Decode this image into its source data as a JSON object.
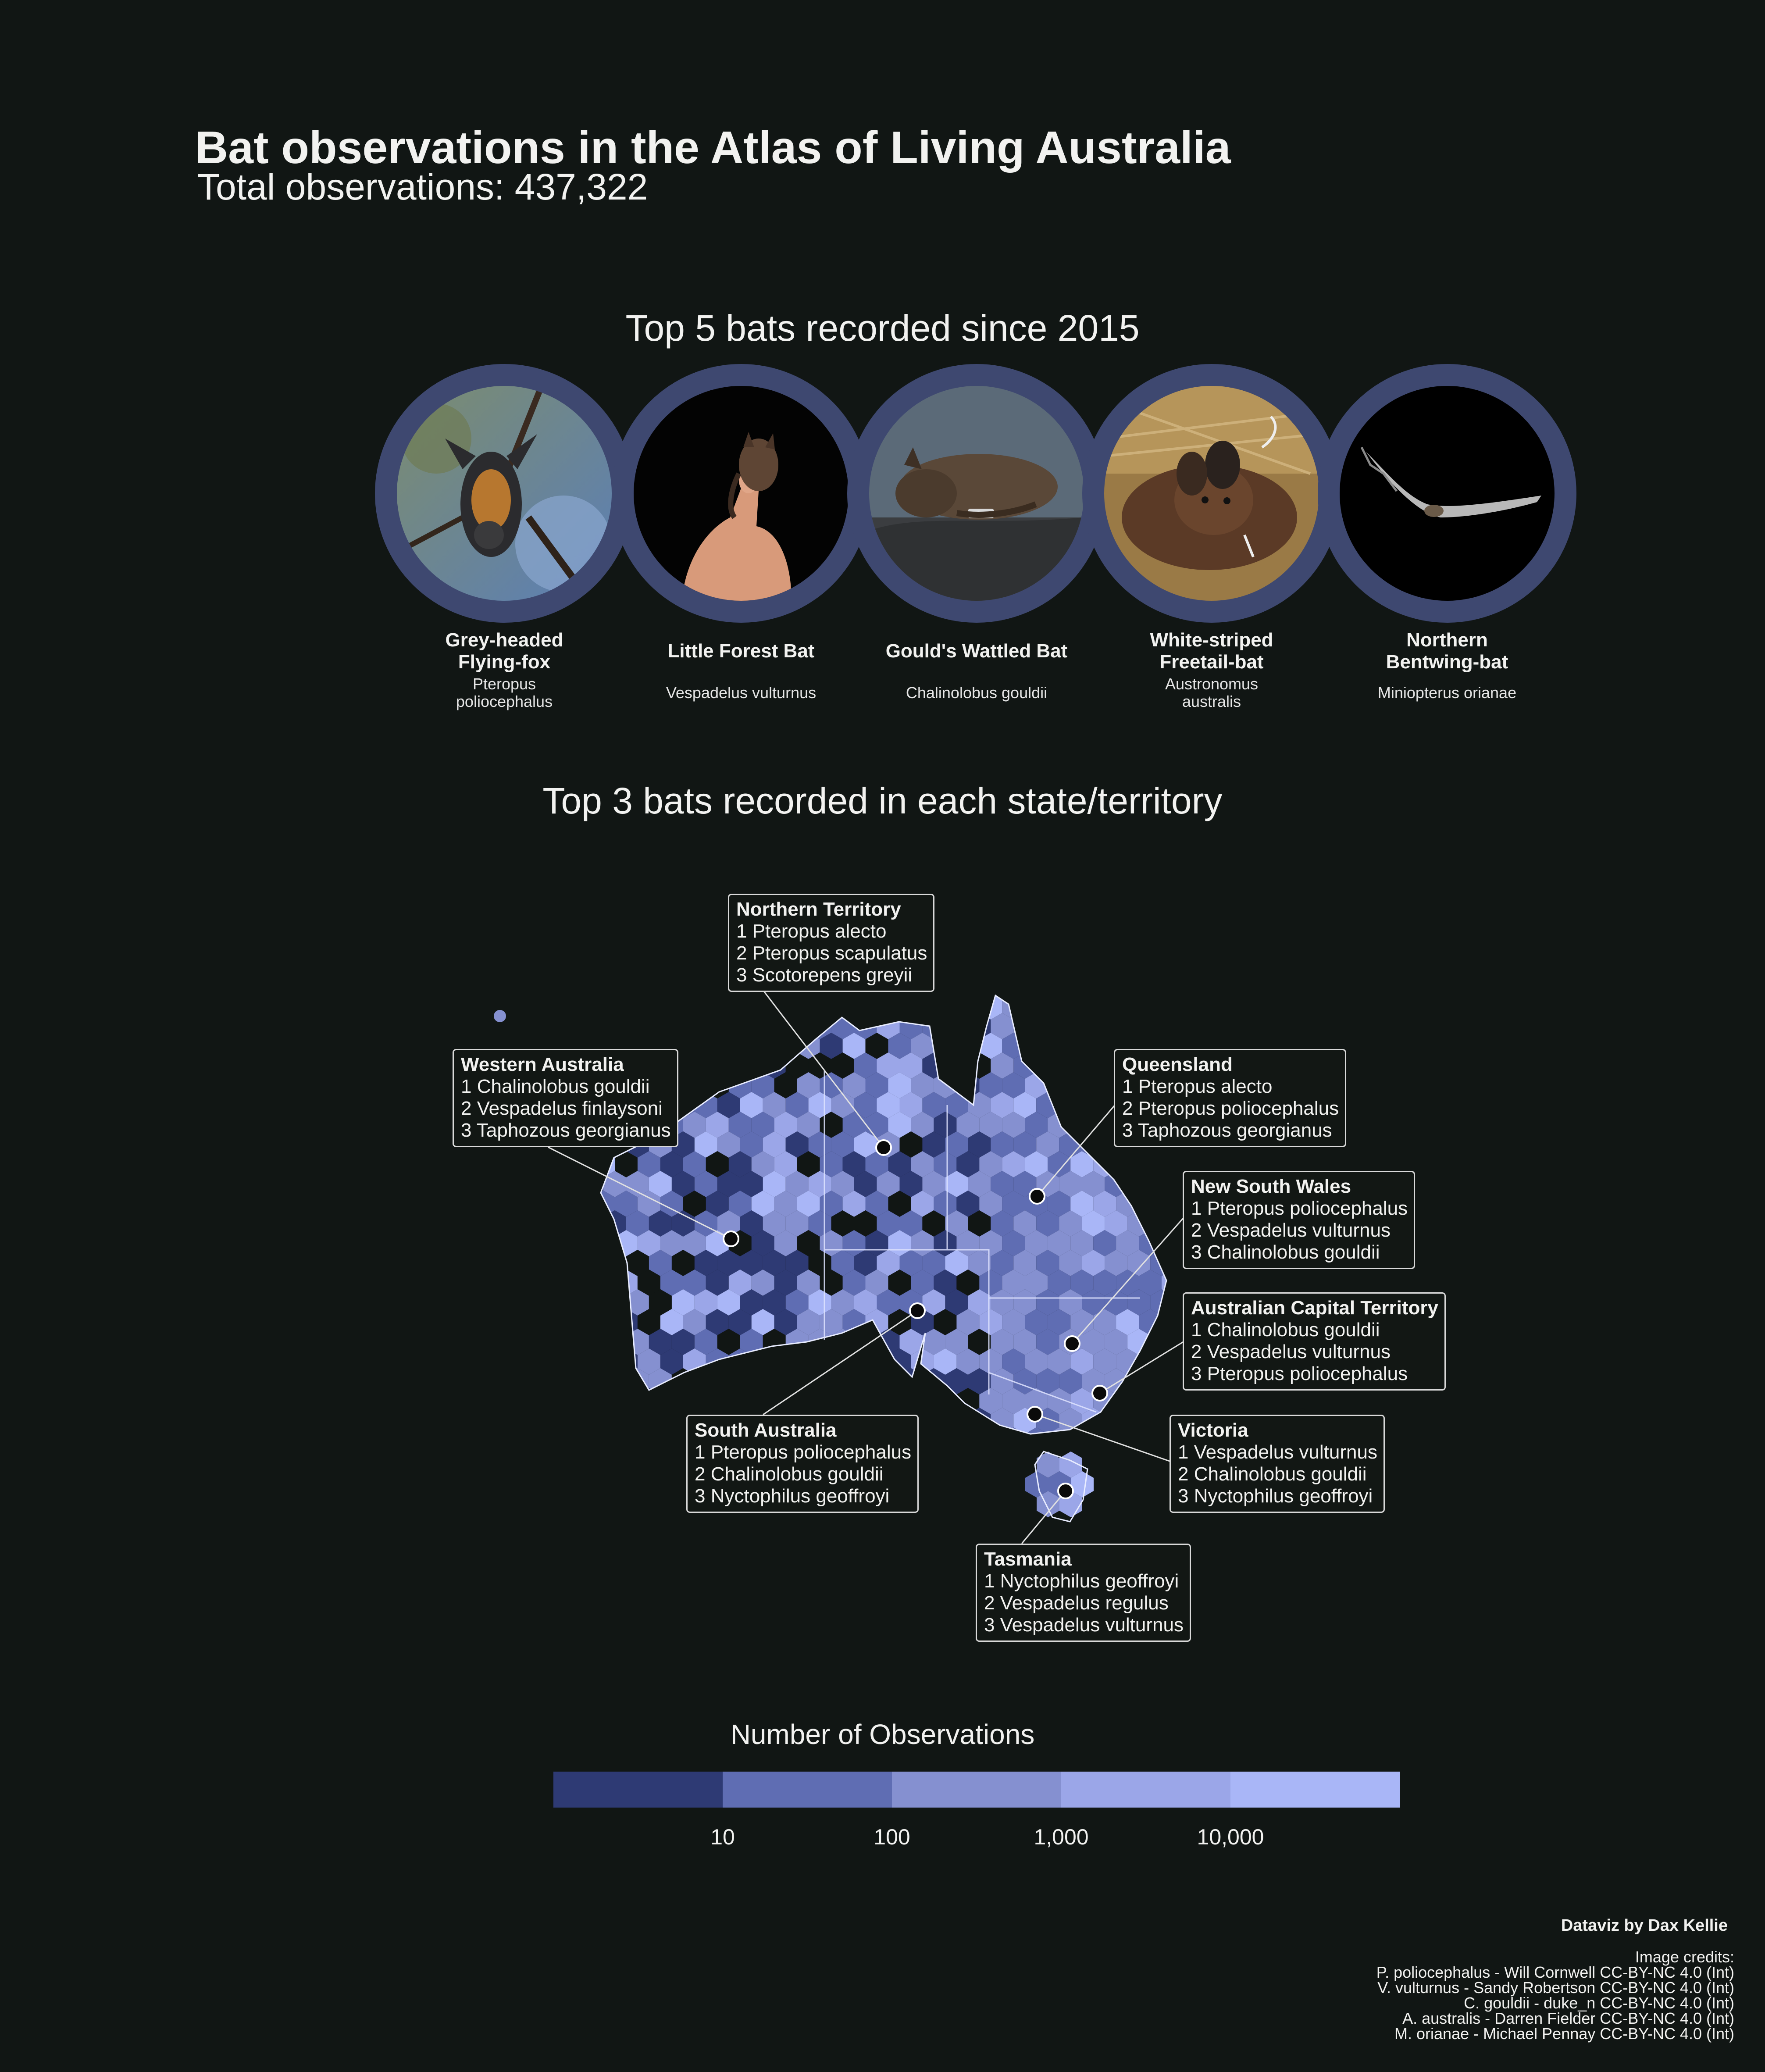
{
  "title": "Bat observations in the Atlas of Living Australia",
  "subtitle": "Total observations: 437,322",
  "top5_title": "Top 5 bats recorded since 2015",
  "bats": [
    {
      "common_name": "Grey-headed Flying-fox",
      "scientific_name": "Pteropus poliocephalus",
      "photo_icon": "grey-headed-flying-fox-photo"
    },
    {
      "common_name": "Little Forest Bat",
      "scientific_name": "Vespadelus vulturnus",
      "photo_icon": "little-forest-bat-photo"
    },
    {
      "common_name": "Gould's Wattled Bat",
      "scientific_name": "Chalinolobus gouldii",
      "photo_icon": "goulds-wattled-bat-photo"
    },
    {
      "common_name": "White-striped Freetail-bat",
      "scientific_name": "Austronomus australis",
      "photo_icon": "white-striped-freetail-bat-photo"
    },
    {
      "common_name": "Northern Bentwing-bat",
      "scientific_name": "Miniopterus orianae",
      "photo_icon": "northern-bentwing-bat-photo"
    }
  ],
  "map_title": "Top 3 bats recorded in each state/territory",
  "states": [
    {
      "name": "Northern Territory",
      "top3": [
        "1 Pteropus alecto",
        "2 Pteropus scapulatus",
        "3 Scotorepens greyii"
      ]
    },
    {
      "name": "Western Australia",
      "top3": [
        "1 Chalinolobus gouldii",
        "2 Vespadelus finlaysoni",
        "3 Taphozous georgianus"
      ]
    },
    {
      "name": "Queensland",
      "top3": [
        "1 Pteropus alecto",
        "2 Pteropus poliocephalus",
        "3 Taphozous georgianus"
      ]
    },
    {
      "name": "New South Wales",
      "top3": [
        "1 Pteropus poliocephalus",
        "2 Vespadelus vulturnus",
        "3 Chalinolobus gouldii"
      ]
    },
    {
      "name": "Australian Capital Territory",
      "top3": [
        "1 Chalinolobus gouldii",
        "2 Vespadelus vulturnus",
        "3 Pteropus poliocephalus"
      ]
    },
    {
      "name": "South Australia",
      "top3": [
        "1 Pteropus poliocephalus",
        "2 Chalinolobus gouldii",
        "3 Nyctophilus geoffroyi"
      ]
    },
    {
      "name": "Victoria",
      "top3": [
        "1 Vespadelus vulturnus",
        "2 Chalinolobus gouldii",
        "3 Nyctophilus geoffroyi"
      ]
    },
    {
      "name": "Tasmania",
      "top3": [
        "1 Nyctophilus geoffroyi",
        "2 Vespadelus regulus",
        "3 Vespadelus vulturnus"
      ]
    }
  ],
  "legend": {
    "title": "Number of Observations",
    "colors": [
      "#2e3a74",
      "#5f6db3",
      "#8590d0",
      "#9ba6e8",
      "#a9b6f7"
    ],
    "ticks": [
      "10",
      "100",
      "1,000",
      "10,000"
    ]
  },
  "map_colors": {
    "border": "#e8ecff",
    "hex_empty": "#111614"
  },
  "byline": "Dataviz by Dax Kellie",
  "credits_heading": "Image credits:",
  "credits": [
    "P. poliocephalus - Will Cornwell CC-BY-NC 4.0 (Int)",
    "V. vulturnus - Sandy Robertson CC-BY-NC 4.0 (Int)",
    "C. gouldii - duke_n CC-BY-NC 4.0 (Int)",
    "A. australis - Darren Fielder CC-BY-NC 4.0 (Int)",
    "M. orianae - Michael Pennay CC-BY-NC 4.0 (Int)"
  ]
}
